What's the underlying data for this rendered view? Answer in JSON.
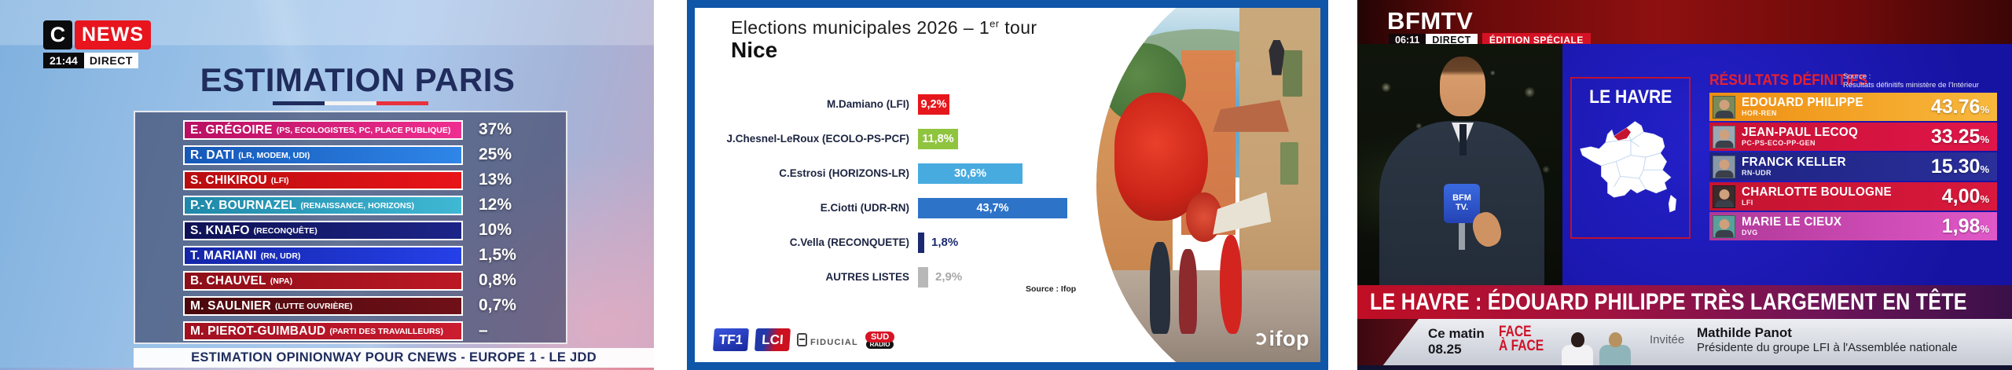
{
  "left_panel": {
    "channel_logo": {
      "c": "C",
      "news": "NEWS"
    },
    "time": "21:44",
    "live_label": "DIRECT",
    "title": "ESTIMATION PARIS",
    "flag_colors": [
      "#1f2c5c",
      "#f4f4f4",
      "#e8313c"
    ],
    "candidates": [
      {
        "name": "E. GRÉGOIRE",
        "party": "(PS, ECOLOGISTES, PC, PLACE PUBLIQUE)",
        "value": "37%",
        "colors": [
          "#b80f62",
          "#ef2f90"
        ]
      },
      {
        "name": "R.  DATI",
        "party": "(LR, MODEM, UDI)",
        "value": "25%",
        "colors": [
          "#1558b8",
          "#2f86e8"
        ]
      },
      {
        "name": "S. CHIKIROU",
        "party": "(LFI)",
        "value": "13%",
        "colors": [
          "#b80d10",
          "#e81418"
        ]
      },
      {
        "name": "P.-Y. BOURNAZEL",
        "party": "(RENAISSANCE, HORIZONS)",
        "value": "12%",
        "colors": [
          "#1f88a8",
          "#3fb8d4"
        ]
      },
      {
        "name": "S. KNAFO",
        "party": "(RECONQUÊTE)",
        "value": "10%",
        "colors": [
          "#0e1254",
          "#1c2488"
        ]
      },
      {
        "name": "T. MARIANI",
        "party": "(RN, UDR)",
        "value": "1,5%",
        "colors": [
          "#1425a8",
          "#2540e8"
        ]
      },
      {
        "name": "B. CHAUVEL",
        "party": "(NPA)",
        "value": "0,8%",
        "colors": [
          "#8c0e18",
          "#bc1824"
        ]
      },
      {
        "name": "M. SAULNIER",
        "party": "(LUTTE OUVRIÈRE)",
        "value": "0,7%",
        "colors": [
          "#4a080c",
          "#701018"
        ]
      },
      {
        "name": "M. PIEROT-GUIMBAUD",
        "party": "(PARTI DES TRAVAILLEURS)",
        "value": "–",
        "colors": [
          "#a01020",
          "#cc1c30"
        ]
      }
    ],
    "footer": "ESTIMATION OPINIONWAY POUR CNEWS - EUROPE 1 - LE JDD"
  },
  "middle_panel": {
    "title": "Elections municipales 2026 – 1",
    "title_sup": "er",
    "title_tail": " tour",
    "city": "Nice",
    "bars": [
      {
        "label": "M.Damiano (LFI)",
        "value": "9,2%",
        "pct": 9.2,
        "color": "#e6171c",
        "mode": "inside"
      },
      {
        "label": "J.Chesnel-LeRoux (ECOLO-PS-PCF)",
        "value": "11,8%",
        "pct": 11.8,
        "color": "#8fc43f",
        "mode": "inside"
      },
      {
        "label": "C.Estrosi (HORIZONS-LR)",
        "value": "30,6%",
        "pct": 30.6,
        "color": "#48abe0",
        "mode": "inside"
      },
      {
        "label": "E.Ciotti (UDR-RN)",
        "value": "43,7%",
        "pct": 43.7,
        "color": "#2d73c8",
        "mode": "inside"
      },
      {
        "label": "C.Vella (RECONQUETE)",
        "value": "1,8%",
        "pct": 1.8,
        "color": "#1b2a70",
        "mode": "outside",
        "text_color": "#1b2a70"
      },
      {
        "label": "AUTRES LISTES",
        "value": "2,9%",
        "pct": 2.9,
        "color": "#b8b8b8",
        "mode": "outside",
        "text_color": "#a8a8a8"
      }
    ],
    "source": "Source : Ifop",
    "logos": {
      "tf1": "TF1",
      "lci": "LCI",
      "fiducial": "FIDUCIAL",
      "sud": "SUD",
      "radio": "RADIO"
    },
    "watermark": "ifop"
  },
  "right_panel": {
    "channel": "BFMTV",
    "time": "06:11",
    "live_label": "DIRECT",
    "special_label": "ÉDITION SPÉCIALE",
    "mic_line1": "BFM",
    "mic_line2": "TV.",
    "map_title": "LE HAVRE",
    "results_header": "RÉSULTATS DÉFINITIFS",
    "source_line1": "Source :",
    "source_line2": "Résultats définitifs ministère de l'Intérieur",
    "results": [
      {
        "name": "EDOUARD PHILIPPE",
        "party": "HOR-REN",
        "value": "43.76",
        "unit": "%",
        "colors": [
          "#ee8e12",
          "#f8b83c"
        ],
        "photo_bg": "#7a8a5a"
      },
      {
        "name": "JEAN-PAUL LECOQ",
        "party": "PC-PS-ECO-PP-GEN",
        "value": "33.25",
        "unit": "%",
        "colors": [
          "#c81232",
          "#e0164a"
        ],
        "photo_bg": "#9aa8b4"
      },
      {
        "name": "FRANCK KELLER",
        "party": "RN-UDR",
        "value": "15.30",
        "unit": "%",
        "colors": [
          "#1e2382",
          "#2a2f9a"
        ],
        "photo_bg": "#8898a8"
      },
      {
        "name": "CHARLOTTE BOULOGNE",
        "party": "LFI",
        "value": "4,00",
        "unit": "%",
        "colors": [
          "#c41430",
          "#d8183c"
        ],
        "photo_bg": "#3a2c2c"
      },
      {
        "name": "MARIE LE CIEUX",
        "party": "DVG",
        "value": "1,98",
        "unit": "%",
        "colors": [
          "#b03898",
          "#e058c8"
        ],
        "photo_bg": "#5aa09a"
      }
    ],
    "banner": "LE HAVRE : ÉDOUARD PHILIPPE TRÈS LARGEMENT EN TÊTE",
    "bottom": {
      "slot_line1": "Ce matin",
      "slot_line2": "08.25",
      "show_line1": "FACE",
      "show_line2": "À FACE",
      "guest_label": "Invitée",
      "guest_name": "Mathilde Panot",
      "guest_title": "Présidente du groupe LFI à l'Assemblée nationale"
    }
  },
  "chart_data": [
    {
      "type": "bar",
      "title": "ESTIMATION PARIS",
      "categories": [
        "E. Grégoire (PS, Ecologistes, PC, Place publique)",
        "R. Dati (LR, Modem, UDI)",
        "S. Chikirou (LFI)",
        "P.-Y. Bournazel (Renaissance, Horizons)",
        "S. Knafo (Reconquête)",
        "T. Mariani (RN, UDR)",
        "B. Chauvel (NPA)",
        "M. Saulnier (Lutte ouvrière)",
        "M. Pierot-Guimbaud (Parti des travailleurs)"
      ],
      "values": [
        37,
        25,
        13,
        12,
        10,
        1.5,
        0.8,
        0.7,
        null
      ],
      "unit": "%",
      "source": "Estimation OpinionWay pour CNEWS - Europe 1 - Le JDD"
    },
    {
      "type": "bar",
      "orientation": "horizontal",
      "title": "Elections municipales 2026 – 1er tour — Nice",
      "categories": [
        "M.Damiano (LFI)",
        "J.Chesnel-LeRoux (ECOLO-PS-PCF)",
        "C.Estrosi (HORIZONS-LR)",
        "E.Ciotti (UDR-RN)",
        "C.Vella (RECONQUETE)",
        "AUTRES LISTES"
      ],
      "values": [
        9.2,
        11.8,
        30.6,
        43.7,
        1.8,
        2.9
      ],
      "unit": "%",
      "source": "Ifop"
    },
    {
      "type": "bar",
      "title": "Le Havre — Résultats définitifs",
      "categories": [
        "Edouard Philippe (HOR-REN)",
        "Jean-Paul Lecoq (PC-PS-ECO-PP-GEN)",
        "Franck Keller (RN-UDR)",
        "Charlotte Boulogne (LFI)",
        "Marie Le Cieux (DVG)"
      ],
      "values": [
        43.76,
        33.25,
        15.3,
        4.0,
        1.98
      ],
      "unit": "%",
      "source": "Résultats définitifs ministère de l'Intérieur"
    }
  ]
}
